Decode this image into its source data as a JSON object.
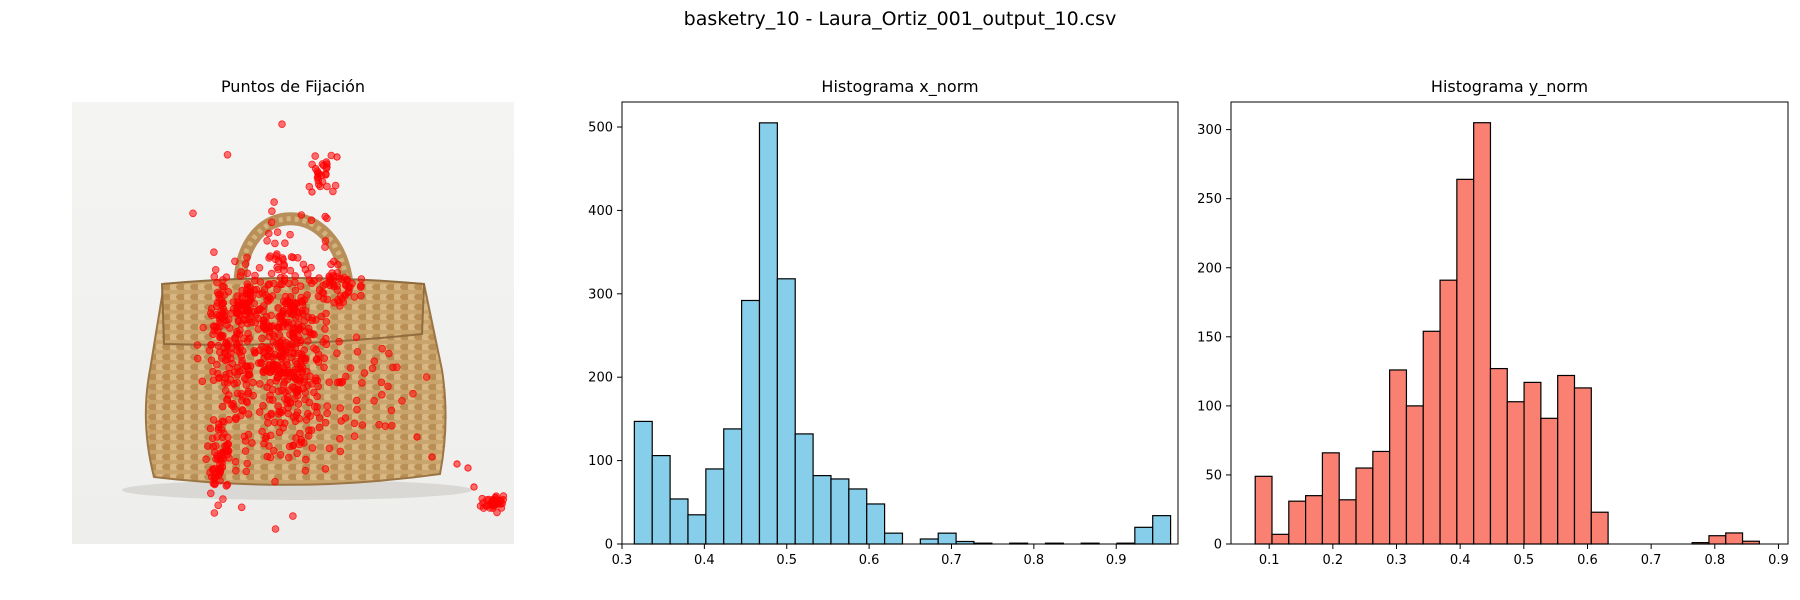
{
  "figure": {
    "suptitle": "basketry_10 - Laura_Ortiz_001_output_10.csv"
  },
  "photo_panel": {
    "title": "Puntos de Fijación",
    "point_color": "#ff0000",
    "image_description_icon": "wicker-basket-photo"
  },
  "chart_data": [
    {
      "type": "bar",
      "title": "Histograma x_norm",
      "xlabel": "",
      "ylabel": "",
      "color": "#87ceeb",
      "edge_color": "#000000",
      "bin_start": 0.315,
      "bin_width": 0.0217,
      "values": [
        147,
        106,
        54,
        35,
        90,
        138,
        292,
        505,
        318,
        132,
        82,
        78,
        66,
        48,
        13,
        0,
        6,
        13,
        3,
        1,
        0,
        1,
        0,
        1,
        0,
        1,
        0,
        1,
        20,
        34
      ],
      "xlim": [
        0.3,
        0.975
      ],
      "ylim": [
        0,
        530
      ],
      "xticks": [
        0.3,
        0.4,
        0.5,
        0.6,
        0.7,
        0.8,
        0.9
      ],
      "xtick_labels": [
        "0.3",
        "0.4",
        "0.5",
        "0.6",
        "0.7",
        "0.8",
        "0.9"
      ],
      "yticks": [
        0,
        100,
        200,
        300,
        400,
        500
      ],
      "ytick_labels": [
        "0",
        "100",
        "200",
        "300",
        "400",
        "500"
      ]
    },
    {
      "type": "bar",
      "title": "Histograma y_norm",
      "xlabel": "",
      "ylabel": "",
      "color": "#fa8072",
      "edge_color": "#000000",
      "bin_start": 0.078,
      "bin_width": 0.0264,
      "values": [
        49,
        7,
        31,
        35,
        66,
        32,
        55,
        67,
        126,
        100,
        154,
        191,
        264,
        305,
        127,
        103,
        117,
        91,
        122,
        113,
        23,
        0,
        0,
        0,
        0,
        0,
        1,
        6,
        8,
        2
      ],
      "xlim": [
        0.04,
        0.915
      ],
      "ylim": [
        0,
        320
      ],
      "xticks": [
        0.1,
        0.2,
        0.3,
        0.4,
        0.5,
        0.6,
        0.7,
        0.8,
        0.9
      ],
      "xtick_labels": [
        "0.1",
        "0.2",
        "0.3",
        "0.4",
        "0.5",
        "0.6",
        "0.7",
        "0.8",
        "0.9"
      ],
      "yticks": [
        0,
        50,
        100,
        150,
        200,
        250,
        300
      ],
      "ytick_labels": [
        "0",
        "50",
        "100",
        "150",
        "200",
        "250",
        "300"
      ]
    }
  ]
}
